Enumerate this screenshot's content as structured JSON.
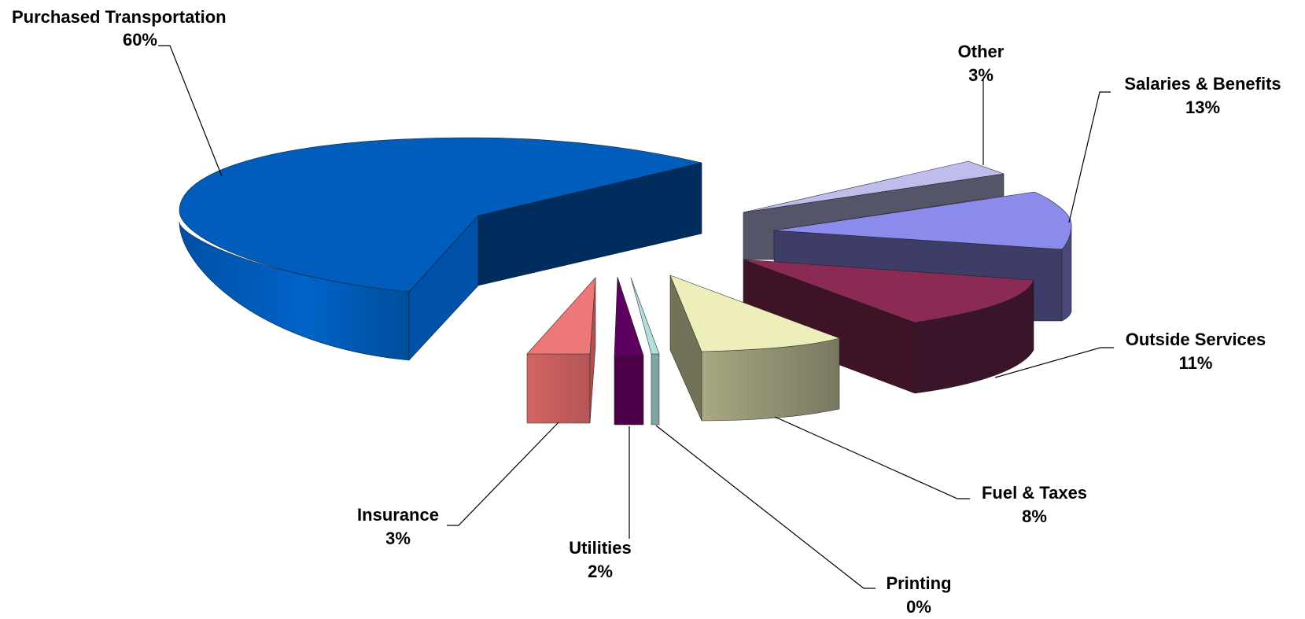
{
  "chart_data": {
    "type": "pie",
    "style": "3d-exploded",
    "slices": [
      {
        "label": "Purchased Transportation",
        "percent_label": "60%",
        "value": 60,
        "color": "#005DBB"
      },
      {
        "label": "Other",
        "percent_label": "3%",
        "value": 3,
        "color": "#BEBDEB"
      },
      {
        "label": "Salaries & Benefits",
        "percent_label": "13%",
        "value": 13,
        "color": "#8B8BEB"
      },
      {
        "label": "Outside Services",
        "percent_label": "11%",
        "value": 11,
        "color": "#8B2A55"
      },
      {
        "label": "Fuel & Taxes",
        "percent_label": "8%",
        "value": 8,
        "color": "#EEEEBB"
      },
      {
        "label": "Printing",
        "percent_label": "0%",
        "value": 0,
        "color": "#B0DDDD"
      },
      {
        "label": "Utilities",
        "percent_label": "2%",
        "value": 2,
        "color": "#5E0060"
      },
      {
        "label": "Insurance",
        "percent_label": "3%",
        "value": 3,
        "color": "#EE7777"
      }
    ]
  }
}
